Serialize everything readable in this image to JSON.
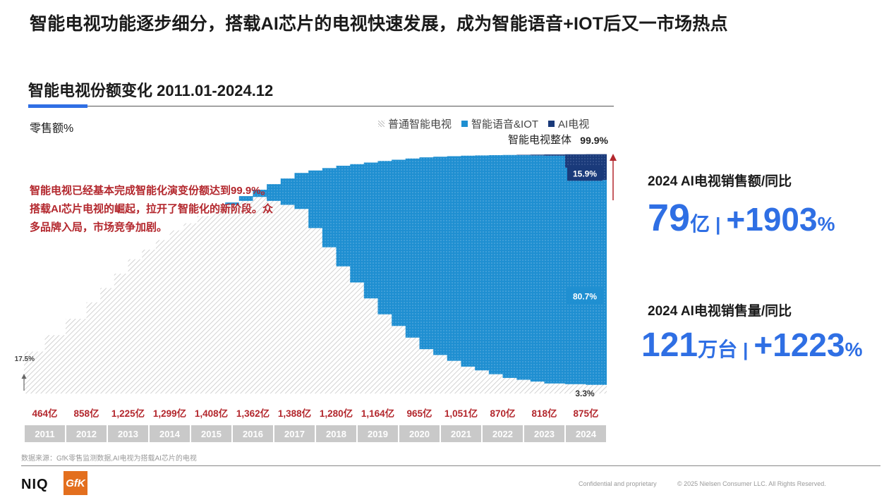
{
  "headline": "智能电视功能逐步细分，搭载AI芯片的电视快速发展，成为智能语音+IOT后又一市场热点",
  "chart_title": "智能电视份额变化 2011.01-2024.12",
  "ylabel": "零售额%",
  "legend": {
    "normal": "普通智能电视",
    "voice": "智能语音&IOT",
    "ai": "AI电视"
  },
  "colors": {
    "accent": "#2f6fe4",
    "voice": "#1f8fd1",
    "ai": "#1a3a7a",
    "normal_hatch": "#cfcfcf",
    "red": "#b3272d",
    "year_bar": "#c9c9c9"
  },
  "annotation": [
    "智能电视已经基本完成智能化演变份额达到99.9%。",
    "搭载AI芯片电视的崛起，拉开了智能化的新阶段。众",
    "多品牌入局，市场竞争加剧。"
  ],
  "kpis": {
    "sales_label": "2024 AI电视销售额/同比",
    "sales_value": "79",
    "sales_unit": "亿",
    "sales_sep": "|",
    "sales_yoy": "+1903",
    "sales_pct": "%",
    "volume_label": "2024 AI电视销售量/同比",
    "volume_value": "121",
    "volume_unit": "万台",
    "volume_sep": "|",
    "volume_yoy": "+1223",
    "volume_pct": "%"
  },
  "chart_data": {
    "type": "area",
    "stacked": true,
    "unit": "%",
    "years": [
      "2011",
      "2012",
      "2013",
      "2014",
      "2015",
      "2016",
      "2017",
      "2018",
      "2019",
      "2020",
      "2021",
      "2022",
      "2023",
      "2024"
    ],
    "retail_sales": [
      "464亿",
      "858亿",
      "1,225亿",
      "1,299亿",
      "1,408亿",
      "1,362亿",
      "1,388亿",
      "1,280亿",
      "1,164亿",
      "965亿",
      "1,051亿",
      "870亿",
      "818亿",
      "875亿"
    ],
    "series": [
      {
        "name": "普通智能电视",
        "key": "normal",
        "start": 17.5,
        "end": 3.3
      },
      {
        "name": "智能语音&IOT",
        "key": "voice",
        "end": 80.7
      },
      {
        "name": "AI电视",
        "key": "ai",
        "end": 15.9
      }
    ],
    "smart_total_share": [
      17.5,
      38,
      56,
      68,
      77,
      85,
      92,
      95,
      97,
      98.5,
      99.2,
      99.5,
      99.7,
      99.9
    ],
    "voice_iot_share": [
      0,
      0,
      0,
      0,
      0,
      3,
      15,
      42,
      64,
      80,
      88,
      93,
      95,
      80.7
    ],
    "ai_share": [
      0,
      0,
      0,
      0,
      0,
      0,
      0,
      0,
      0,
      0,
      0,
      0,
      0.5,
      15.9
    ],
    "start_label": "17.5%",
    "total_label": "智能电视整体",
    "total_value": "99.9%",
    "ai_end_label": "15.9%",
    "voice_end_label": "80.7%",
    "normal_end_label": "3.3%",
    "ylim": [
      0,
      100
    ]
  },
  "footer": {
    "source": "数据来源：GfK零售监测数据,AI电视为搭载AI芯片的电视",
    "niq": "NIQ",
    "gfk": "GfK",
    "confidential": "Confidential and proprietary",
    "copyright": "© 2025 Nielsen Consumer LLC. All Rights Reserved."
  }
}
